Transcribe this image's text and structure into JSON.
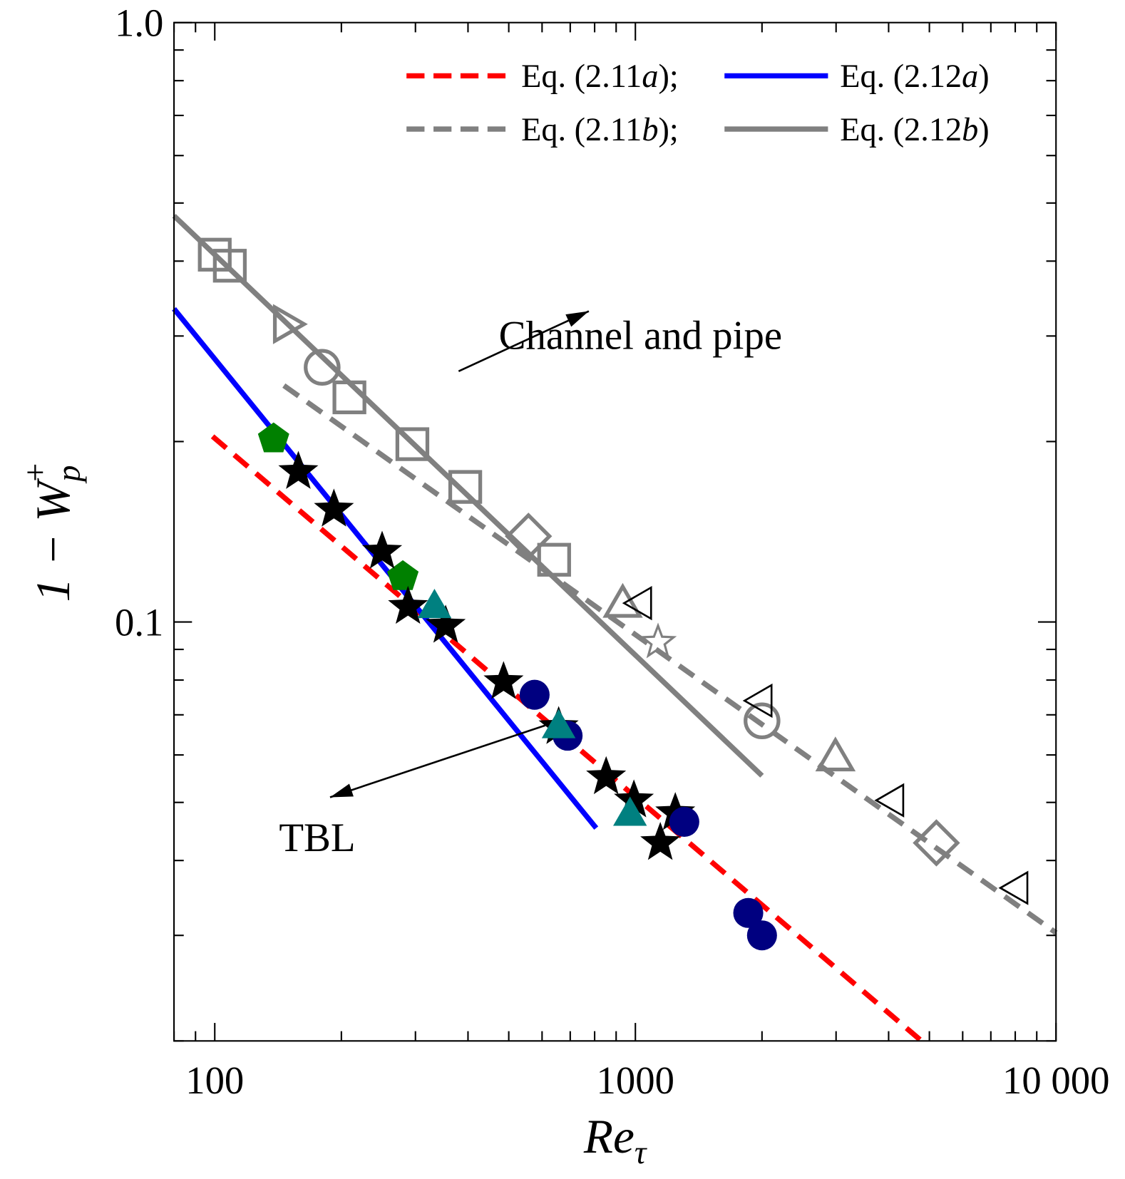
{
  "chart_data": {
    "type": "scatter",
    "xlabel": "Re",
    "xlabel_sub": "τ",
    "ylabel": "1 − W",
    "ylabel_sub": "p",
    "ylabel_sup": "+",
    "xscale": "log",
    "yscale": "log",
    "xlim": [
      80,
      10000
    ],
    "ylim": [
      0.02,
      1.0
    ],
    "xticks": [
      {
        "v": 100,
        "label": "100"
      },
      {
        "v": 1000,
        "label": "1000"
      },
      {
        "v": 10000,
        "label": "10 000"
      }
    ],
    "yticks": [
      {
        "v": 1.0,
        "label": "1.0"
      },
      {
        "v": 0.1,
        "label": "0.1"
      }
    ],
    "grid": false,
    "legend_position": "top-right",
    "lines": [
      {
        "name": "Eq. (2.11a);",
        "label_main": "Eq. (2.11",
        "label_it": "a",
        "label_end": ");",
        "color": "#ff0000",
        "dash": true,
        "x": [
          98.8,
          4748
        ],
        "y": [
          0.204,
          0.0201
        ]
      },
      {
        "name": "Eq. (2.12a)",
        "label_main": "Eq. (2.12",
        "label_it": "a",
        "label_end": ")",
        "color": "#0000ff",
        "dash": false,
        "x": [
          80,
          807
        ],
        "y": [
          0.333,
          0.0453
        ]
      },
      {
        "name": "Eq. (2.11b);",
        "label_main": "Eq. (2.11",
        "label_it": "b",
        "label_end": ");",
        "color": "#808080",
        "dash": true,
        "x": [
          146,
          10000
        ],
        "y": [
          0.248,
          0.0303
        ]
      },
      {
        "name": "Eq. (2.12b)",
        "label_main": "Eq. (2.12",
        "label_it": "b",
        "label_end": ")",
        "color": "#808080",
        "dash": false,
        "x": [
          80,
          2000
        ],
        "y": [
          0.476,
          0.0554
        ]
      }
    ],
    "markers": [
      {
        "shape": "square",
        "fill": "none",
        "color": "#808080",
        "x": [
          100,
          108.6,
          209,
          295,
          394,
          641
        ],
        "y": [
          0.41,
          0.393,
          0.237,
          0.198,
          0.168,
          0.127
        ]
      },
      {
        "shape": "tri-right",
        "fill": "none",
        "color": "#808080",
        "x": [
          149
        ],
        "y": [
          0.314
        ]
      },
      {
        "shape": "circle",
        "fill": "none",
        "color": "#808080",
        "x": [
          180,
          2000
        ],
        "y": [
          0.266,
          0.0684
        ]
      },
      {
        "shape": "diamond",
        "fill": "none",
        "color": "#808080",
        "x": [
          557,
          5195
        ],
        "y": [
          0.139,
          0.0428
        ]
      },
      {
        "shape": "tri-up",
        "fill": "none",
        "color": "#808080",
        "x": [
          933,
          2990
        ],
        "y": [
          0.1075,
          0.0596
        ]
      },
      {
        "shape": "star",
        "fill": "none",
        "color": "#808080",
        "x": [
          1132
        ],
        "y": [
          0.0925
        ]
      },
      {
        "shape": "tri-left",
        "fill": "none",
        "color": "#000000",
        "x": [
          1012,
          1957,
          4024,
          7940
        ],
        "y": [
          0.1075,
          0.0739,
          0.0504,
          0.036
        ]
      },
      {
        "shape": "pentagon",
        "fill": "#008000",
        "color": "#008000",
        "x": [
          138,
          280
        ],
        "y": [
          0.202,
          0.119
        ]
      },
      {
        "shape": "star",
        "fill": "#000000",
        "color": "#000000",
        "x": [
          158,
          192,
          250,
          288,
          354,
          486,
          657,
          852,
          992,
          1244,
          1146
        ],
        "y": [
          0.178,
          0.154,
          0.131,
          0.106,
          0.0986,
          0.0794,
          0.0668,
          0.0551,
          0.0504,
          0.048,
          0.0428
        ]
      },
      {
        "shape": "circle",
        "fill": "#000080",
        "color": "#000080",
        "x": [
          576,
          690,
          1307,
          1855,
          2000
        ],
        "y": [
          0.0756,
          0.0646,
          0.0464,
          0.0327,
          0.03
        ]
      },
      {
        "shape": "tri-up",
        "fill": "#008080",
        "color": "#008080",
        "x": [
          333,
          657,
          971
        ],
        "y": [
          0.1066,
          0.0672,
          0.048
        ]
      }
    ],
    "annotations": [
      {
        "text": "Channel and pipe",
        "arrow_from": [
          380,
          0.262
        ],
        "arrow_to": [
          775,
          0.33
        ]
      },
      {
        "text": "TBL",
        "arrow_from": [
          610,
          0.0672
        ],
        "arrow_to": [
          188,
          0.051
        ]
      }
    ]
  }
}
